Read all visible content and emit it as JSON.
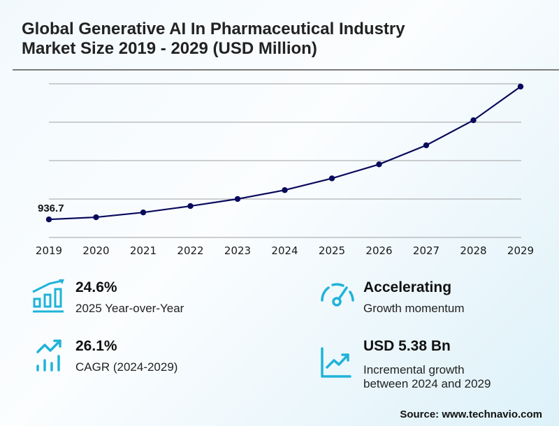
{
  "title": "Global Generative AI In Pharmaceutical Industry Market Size 2019 - 2029 (USD Million)",
  "colors": {
    "line": "#0a0a5c",
    "gridline": "#a0a0a0",
    "accent": "#1fb3d8"
  },
  "chart_data": {
    "type": "line",
    "title": "Global Generative AI In Pharmaceutical Industry Market Size 2019 - 2029 (USD Million)",
    "xlabel": "",
    "ylabel": "USD Million",
    "categories": [
      "2019",
      "2020",
      "2021",
      "2022",
      "2023",
      "2024",
      "2025",
      "2026",
      "2027",
      "2028",
      "2029"
    ],
    "series": [
      {
        "name": "Market Size",
        "values": [
          936.7,
          1050,
          1300,
          1630,
          2000,
          2460,
          3070,
          3800,
          4790,
          6090,
          7840
        ]
      }
    ],
    "data_labels": [
      {
        "category": "2019",
        "text": "936.7"
      }
    ],
    "ylim": [
      0,
      8000
    ],
    "grid": true,
    "legend": "none"
  },
  "stats": [
    {
      "icon": "bar-chart-growth-icon",
      "value": "24.6%",
      "desc": "2025 Year-over-Year"
    },
    {
      "icon": "speedometer-icon",
      "value": "Accelerating",
      "desc": "Growth momentum"
    },
    {
      "icon": "trend-up-bars-icon",
      "value": "26.1%",
      "desc": "CAGR (2024-2029)"
    },
    {
      "icon": "line-chart-up-icon",
      "value": "USD 5.38 Bn",
      "desc_line1": "Incremental growth",
      "desc_line2": "between 2024 and 2029"
    }
  ],
  "source": "Source: www.technavio.com"
}
